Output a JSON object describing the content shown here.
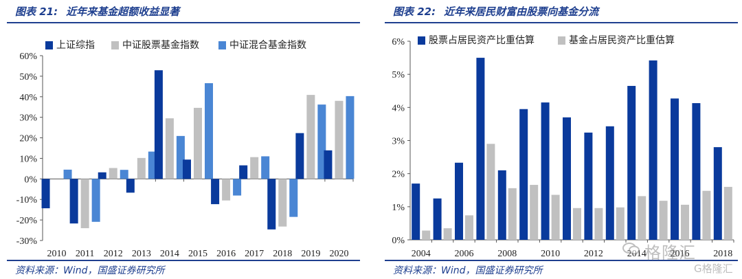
{
  "left": {
    "fig_label": "图表 21:",
    "fig_title": "近年来基金超额收益显著",
    "source": "资料来源：Wind，国盛证券研究所"
  },
  "right": {
    "fig_label": "图表 22:",
    "fig_title": "近年来居民财富由股票向基金分流",
    "source": "资料来源：Wind，国盛证券研究所"
  },
  "watermark": {
    "text": "格隆汇",
    "subtext": "G格隆汇",
    "icon": "wechat-icon"
  },
  "colors": {
    "dark_blue": "#0a3a9c",
    "grey": "#c0c0c0",
    "light_blue": "#4a86d4",
    "rule": "#1e3f8f"
  },
  "chart_data": [
    {
      "type": "bar",
      "categories": [
        "2010",
        "2011",
        "2012",
        "2013",
        "2014",
        "2015",
        "2016",
        "2017",
        "2018",
        "2019",
        "2020"
      ],
      "series": [
        {
          "name": "上证综指",
          "color": "#0a3a9c",
          "values": [
            -14.3,
            -21.7,
            3.2,
            -6.7,
            52.9,
            9.4,
            -12.3,
            6.6,
            -24.6,
            22.3,
            13.9
          ]
        },
        {
          "name": "中证股票基金指数",
          "color": "#c0c0c0",
          "values": [
            0,
            -24.0,
            5.3,
            10.2,
            29.5,
            34.6,
            -10.5,
            10.6,
            -23.2,
            40.9,
            38.0
          ]
        },
        {
          "name": "中证混合基金指数",
          "color": "#4a86d4",
          "values": [
            4.5,
            -20.9,
            4.4,
            13.3,
            20.9,
            46.6,
            -8.1,
            11.0,
            -18.5,
            36.2,
            40.3
          ]
        }
      ],
      "yticks": [
        "60%",
        "50%",
        "40%",
        "30%",
        "20%",
        "10%",
        "0%",
        "-10%",
        "-20%",
        "-30%"
      ],
      "ylim": [
        -30,
        60
      ],
      "legend": "top"
    },
    {
      "type": "bar",
      "categories": [
        "2004",
        "2005",
        "2006",
        "2007",
        "2008",
        "2009",
        "2010",
        "2011",
        "2012",
        "2013",
        "2014",
        "2015",
        "2016",
        "2017",
        "2018"
      ],
      "xtick_labels": [
        "2004",
        "",
        "2006",
        "",
        "2008",
        "",
        "2010",
        "",
        "2012",
        "",
        "2014",
        "",
        "2016",
        "",
        "2018"
      ],
      "series": [
        {
          "name": "股票占居民资产比重估算",
          "color": "#0a3a9c",
          "values": [
            1.7,
            1.25,
            2.33,
            5.5,
            2.1,
            3.95,
            4.15,
            3.7,
            3.24,
            3.43,
            4.65,
            5.42,
            4.27,
            4.13,
            2.8
          ]
        },
        {
          "name": "基金占居民资产比重估算",
          "color": "#c0c0c0",
          "values": [
            0.28,
            0.35,
            0.74,
            2.9,
            1.56,
            1.66,
            1.36,
            0.96,
            0.96,
            0.98,
            1.32,
            1.18,
            1.06,
            1.48,
            1.6
          ]
        }
      ],
      "yticks": [
        "6%",
        "5%",
        "4%",
        "3%",
        "2%",
        "1%",
        "0%"
      ],
      "ylim": [
        0,
        6
      ],
      "legend": "top"
    }
  ]
}
